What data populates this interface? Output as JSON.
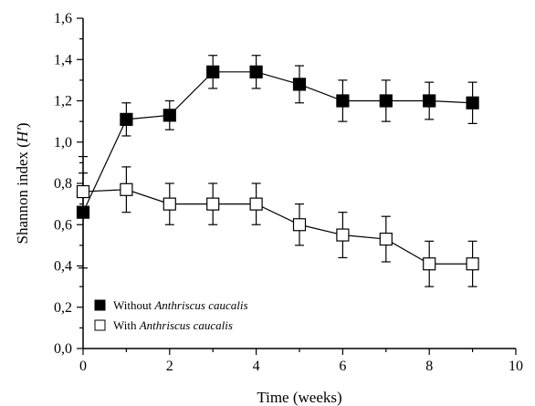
{
  "chart_data": {
    "type": "line",
    "xlabel": "Time (weeks)",
    "ylabel_parts": [
      "Shannon index (",
      "H'",
      ")"
    ],
    "xlim": [
      0,
      10
    ],
    "ylim": [
      0,
      1.6
    ],
    "xticks": [
      "0",
      "2",
      "4",
      "6",
      "8",
      "10"
    ],
    "yticks": [
      "0,0",
      "0,2",
      "0,4",
      "0,6",
      "0,8",
      "1,0",
      "1,2",
      "1,4",
      "1,6"
    ],
    "xtick_values": [
      0,
      2,
      4,
      6,
      8,
      10
    ],
    "ytick_values": [
      0,
      0.2,
      0.4,
      0.6,
      0.8,
      1.0,
      1.2,
      1.4,
      1.6
    ],
    "grid": false,
    "legend_position": "bottom-left",
    "series": [
      {
        "name_plain": "Without ",
        "name_italic": "Anthriscus caucalis",
        "marker": "filled-square",
        "marker_color": "#000000",
        "x": [
          0,
          1,
          2,
          3,
          4,
          5,
          6,
          7,
          8,
          9
        ],
        "y": [
          0.66,
          1.11,
          1.13,
          1.34,
          1.34,
          1.28,
          1.2,
          1.2,
          1.2,
          1.19
        ],
        "err": [
          0.27,
          0.08,
          0.07,
          0.08,
          0.08,
          0.09,
          0.1,
          0.1,
          0.09,
          0.1
        ]
      },
      {
        "name_plain": "With ",
        "name_italic": "Anthriscus caucalis",
        "marker": "open-square",
        "marker_color": "#ffffff",
        "x": [
          0,
          1,
          2,
          3,
          4,
          5,
          6,
          7,
          8,
          9
        ],
        "y": [
          0.76,
          0.77,
          0.7,
          0.7,
          0.7,
          0.6,
          0.55,
          0.53,
          0.41,
          0.41
        ],
        "err": [
          0.09,
          0.11,
          0.1,
          0.1,
          0.1,
          0.1,
          0.11,
          0.11,
          0.11,
          0.11
        ]
      }
    ]
  }
}
